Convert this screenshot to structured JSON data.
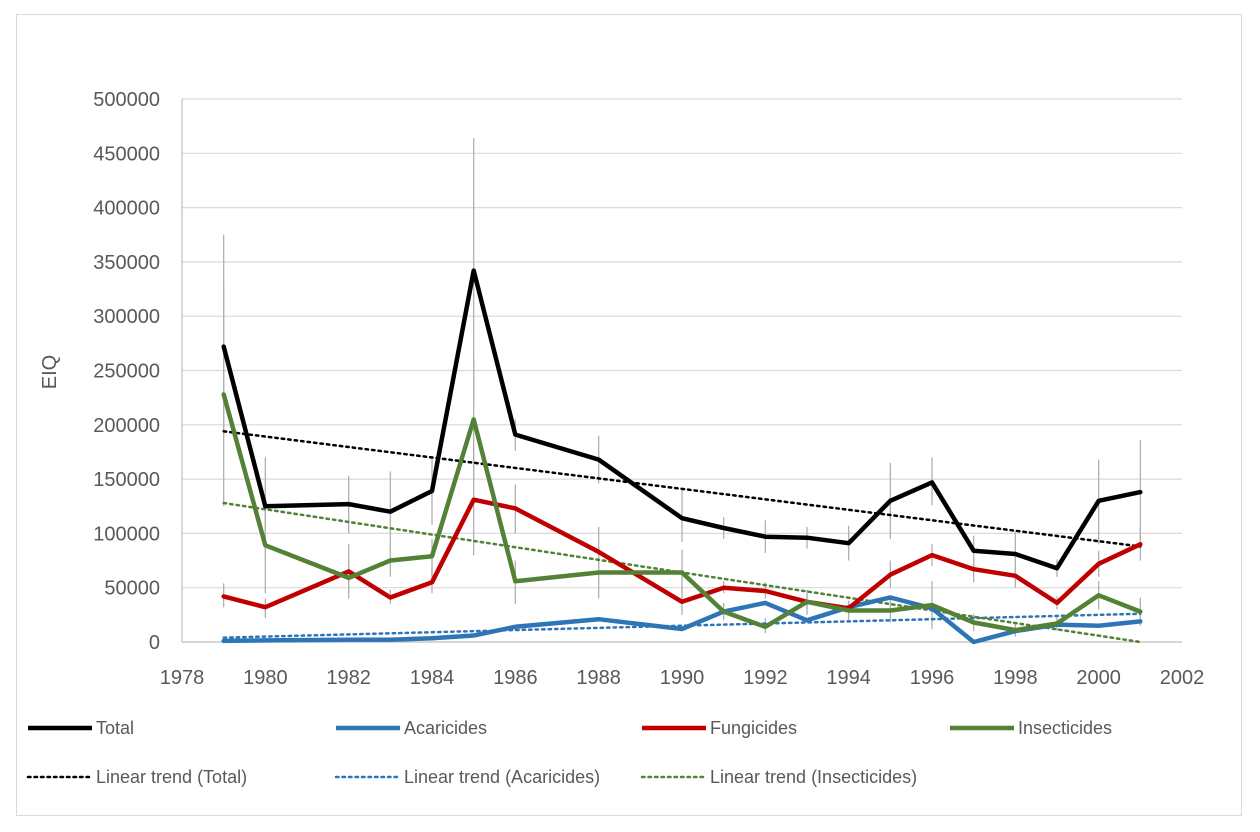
{
  "chart_data": {
    "type": "line",
    "title": "",
    "xlabel": "",
    "ylabel": "EIQ",
    "xlim": [
      1978,
      2002
    ],
    "ylim": [
      0,
      500000
    ],
    "xticks": [
      1978,
      1980,
      1982,
      1984,
      1986,
      1988,
      1990,
      1992,
      1994,
      1996,
      1998,
      2000,
      2002
    ],
    "yticks": [
      0,
      50000,
      100000,
      150000,
      200000,
      250000,
      300000,
      350000,
      400000,
      450000,
      500000
    ],
    "grid": "horizontal",
    "legend_position": "bottom",
    "x": [
      1979,
      1980,
      1982,
      1983,
      1984,
      1985,
      1986,
      1988,
      1990,
      1991,
      1992,
      1993,
      1994,
      1995,
      1996,
      1997,
      1998,
      1999,
      2000,
      2001
    ],
    "series": [
      {
        "name": "Total",
        "color": "#000000",
        "values": [
          272000,
          125000,
          127000,
          120000,
          139000,
          342000,
          191000,
          168000,
          114000,
          105000,
          97000,
          96000,
          91000,
          130000,
          147000,
          84000,
          81000,
          68000,
          130000,
          138000
        ],
        "error_low": [
          190000,
          80000,
          100000,
          88000,
          108000,
          220000,
          176000,
          146000,
          92000,
          95000,
          82000,
          86000,
          75000,
          95000,
          126000,
          70000,
          60000,
          60000,
          90000,
          90000
        ],
        "error_high": [
          375000,
          170000,
          153000,
          157000,
          170000,
          464000,
          205000,
          190000,
          140000,
          115000,
          112000,
          106000,
          107000,
          165000,
          170000,
          98000,
          102000,
          76000,
          168000,
          186000
        ]
      },
      {
        "name": "Acaricides",
        "color": "#2e75b6",
        "values": [
          1000,
          1500,
          2000,
          2000,
          3500,
          6000,
          14000,
          21000,
          12000,
          28000,
          36000,
          20000,
          32000,
          41000,
          31000,
          0,
          10000,
          16000,
          15000,
          19000
        ]
      },
      {
        "name": "Fungicides",
        "color": "#c00000",
        "values": [
          42000,
          32000,
          65000,
          41000,
          55000,
          131000,
          123000,
          83000,
          37000,
          50000,
          47000,
          37000,
          31000,
          62000,
          80000,
          67000,
          61000,
          36000,
          72000,
          90000
        ],
        "error_low": [
          32000,
          22000,
          40000,
          35000,
          45000,
          80000,
          100000,
          60000,
          25000,
          45000,
          40000,
          30000,
          25000,
          50000,
          70000,
          55000,
          50000,
          30000,
          60000,
          75000
        ],
        "error_high": [
          54000,
          40000,
          90000,
          48000,
          68000,
          182000,
          145000,
          106000,
          50000,
          56000,
          55000,
          44000,
          38000,
          75000,
          90000,
          78000,
          72000,
          42000,
          84000,
          105000
        ]
      },
      {
        "name": "Insecticides",
        "color": "#538135",
        "values": [
          228000,
          89000,
          59000,
          75000,
          79000,
          205000,
          56000,
          64000,
          64000,
          28000,
          14000,
          37000,
          29000,
          29000,
          34000,
          18000,
          11000,
          17000,
          43000,
          28000
        ],
        "error_low": [
          125000,
          45000,
          45000,
          60000,
          60000,
          150000,
          35000,
          40000,
          45000,
          20000,
          8000,
          25000,
          20000,
          18000,
          12000,
          10000,
          5000,
          10000,
          30000,
          15000
        ],
        "error_high": [
          330000,
          130000,
          75000,
          90000,
          95000,
          260000,
          75000,
          88000,
          85000,
          36000,
          22000,
          48000,
          38000,
          40000,
          56000,
          26000,
          17000,
          24000,
          56000,
          41000
        ]
      }
    ],
    "trends": [
      {
        "name": "Linear trend (Total)",
        "color": "#000000",
        "x": [
          1979,
          2001
        ],
        "values": [
          194000,
          88000
        ]
      },
      {
        "name": "Linear trend (Acaricides)",
        "color": "#2e75b6",
        "x": [
          1979,
          2001
        ],
        "values": [
          4000,
          26000
        ]
      },
      {
        "name": "Linear trend (Insecticides)",
        "color": "#538135",
        "x": [
          1979,
          2001
        ],
        "values": [
          128000,
          0
        ]
      }
    ]
  }
}
